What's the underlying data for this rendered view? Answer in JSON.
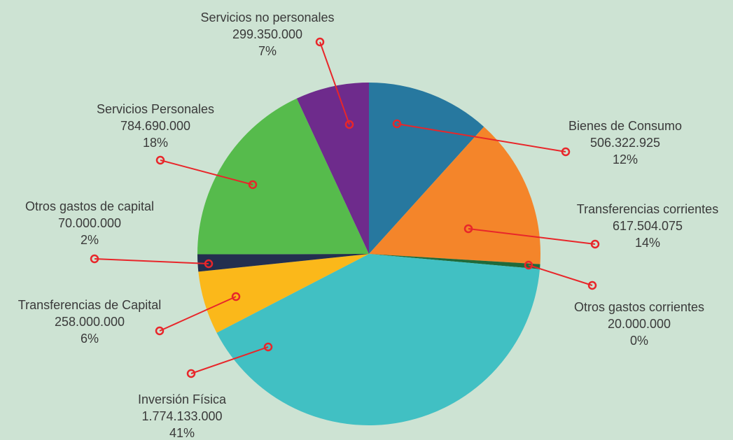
{
  "chart_data": {
    "type": "pie",
    "categories": [
      "Bienes de Consumo",
      "Transferencias corrientes",
      "Otros gastos corrientes",
      "Inversión Física",
      "Transferencias de Capital",
      "Otros gastos de capital",
      "Servicios Personales",
      "Servicios no personales"
    ],
    "values": [
      506322925,
      617504075,
      20000000,
      1774133000,
      258000000,
      70000000,
      784690000,
      299350000
    ],
    "value_labels": [
      "506.322.925",
      "617.504.075",
      "20.000.000",
      "1.774.133.000",
      "258.000.000",
      "70.000.000",
      "784.690.000",
      "299.350.000"
    ],
    "percent_labels": [
      "12%",
      "14%",
      "0%",
      "41%",
      "6%",
      "2%",
      "18%",
      "7%"
    ],
    "colors": [
      "#27789f",
      "#f4852a",
      "#1f6a3a",
      "#41c0c3",
      "#fbb81a",
      "#232f4f",
      "#56bb4c",
      "#6e2b8c"
    ]
  }
}
